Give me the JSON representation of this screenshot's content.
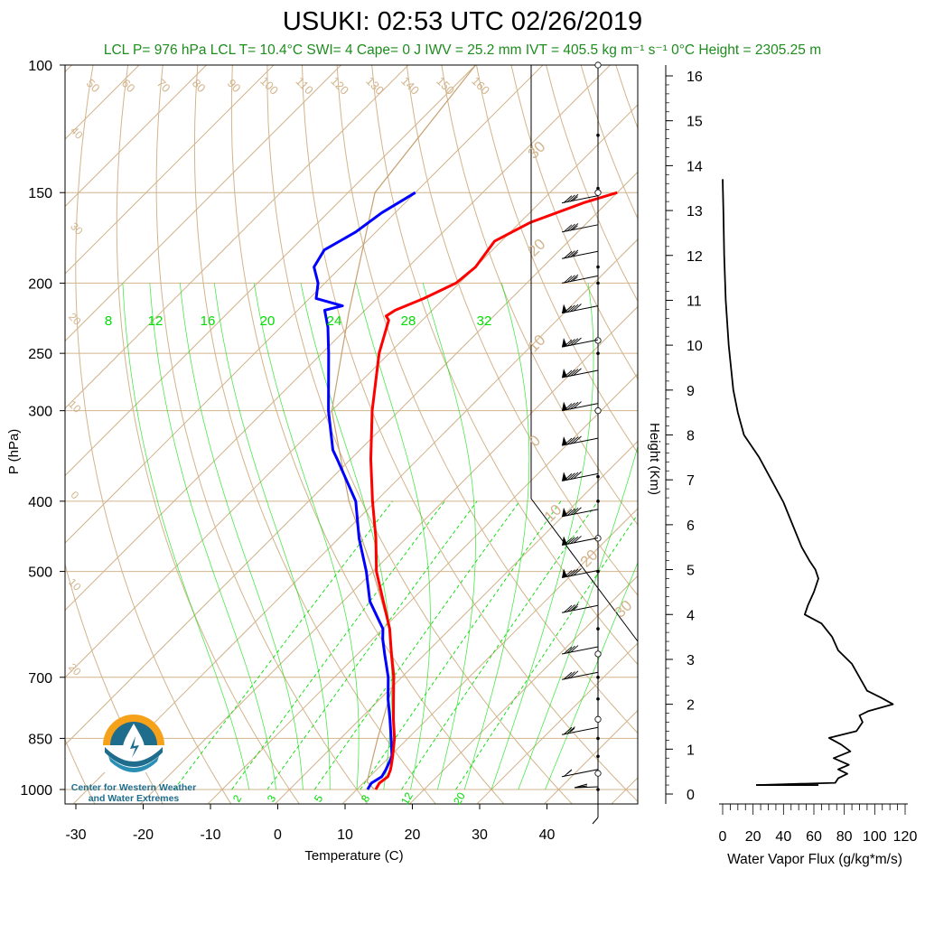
{
  "title": "USUKI: 02:53 UTC 02/26/2019",
  "subtitle": "LCL P= 976 hPa  LCL T= 10.4°C  SWI= 4  Cape= 0 J  IWV = 25.2 mm  IVT = 405.5 kg m⁻¹ s⁻¹  0°C Height = 2305.25 m",
  "logo": {
    "line1": "Center for Western Weather",
    "line2": "and Water Extremes",
    "icon": "water-drop-sun-logo"
  },
  "colors": {
    "temperature": "#ff0000",
    "dewpoint": "#0000ff",
    "isotherm": "#d2b48c",
    "mixing_ratio": "#00dd00",
    "moist_adiabat": "#00dd00",
    "subtitle": "#1e8c1e",
    "flux": "#000000"
  },
  "chart_data": [
    {
      "type": "line",
      "name": "skew-t",
      "xlabel": "Temperature (C)",
      "ylabel": "P (hPa)",
      "xlim": [
        -34,
        52
      ],
      "pressure_ticks": [
        100,
        150,
        200,
        250,
        300,
        400,
        500,
        700,
        850,
        1000
      ],
      "temperature_ticks": [
        -30,
        -20,
        -10,
        0,
        10,
        20,
        30,
        40
      ],
      "isotherm_labels_top": [
        "50",
        "60",
        "70",
        "80",
        "90",
        "100",
        "110",
        "120",
        "130",
        "140",
        "150",
        "160"
      ],
      "dry_adiabat_labels_left": [
        "40",
        "30",
        "20",
        "10",
        "0",
        "10",
        "20"
      ],
      "temp_labels_right": [
        "30",
        "20",
        "10",
        "0",
        "10",
        "20",
        "30"
      ],
      "mixing_ratio_labels_top": [
        "8",
        "12",
        "16",
        "20",
        "24",
        "28",
        "32"
      ],
      "mixing_ratio_labels_bottom": [
        "2",
        "3",
        "5",
        "8",
        "12",
        "20"
      ],
      "temperature_profile": {
        "p": [
          1000,
          980,
          960,
          940,
          925,
          900,
          850,
          800,
          750,
          700,
          650,
          600,
          550,
          500,
          450,
          400,
          350,
          300,
          250,
          225,
          222,
          218,
          210,
          200,
          190,
          175,
          165,
          155,
          150
        ],
        "t": [
          12.8,
          12.4,
          12.7,
          12.1,
          11.5,
          10.4,
          8.0,
          5.0,
          2.0,
          -1.2,
          -5.0,
          -9.0,
          -14.0,
          -19.5,
          -24.5,
          -30.5,
          -37.0,
          -44.0,
          -51.5,
          -55.0,
          -56.0,
          -55.5,
          -53.0,
          -50.5,
          -50.0,
          -51.0,
          -48.5,
          -43.5,
          -40.0
        ]
      },
      "dewpoint_profile": {
        "p": [
          1000,
          980,
          960,
          940,
          925,
          900,
          850,
          800,
          750,
          700,
          650,
          620,
          600,
          550,
          500,
          450,
          400,
          350,
          340,
          300,
          250,
          230,
          218,
          215,
          210,
          200,
          190,
          180,
          170,
          160,
          150
        ],
        "td": [
          11.6,
          11.2,
          11.8,
          11.4,
          11.0,
          10.3,
          7.5,
          4.5,
          1.2,
          -2.0,
          -6.0,
          -8.5,
          -10.0,
          -16.0,
          -21.0,
          -27.0,
          -33.0,
          -42.0,
          -44.0,
          -50.5,
          -59.0,
          -63.0,
          -66.0,
          -64.0,
          -69.0,
          -71.0,
          -74.0,
          -75.0,
          -73.0,
          -72.0,
          -70.0
        ]
      },
      "parcel_path": {
        "p": [
          1000,
          976,
          900,
          850,
          700,
          600,
          500,
          400,
          300,
          220,
          150,
          100
        ],
        "t": [
          12.6,
          10.4,
          7.5,
          5.5,
          -1.0,
          -9.0,
          -20.0,
          -34.0,
          -50.0,
          -62.0,
          -76.0,
          -80.0
        ]
      },
      "wind_barbs": [
        {
          "p": 1000,
          "speed_kt": 0
        },
        {
          "p": 960,
          "speed_kt": 15
        },
        {
          "p": 840,
          "speed_kt": 25
        },
        {
          "p": 705,
          "speed_kt": 30
        },
        {
          "p": 650,
          "speed_kt": 30
        },
        {
          "p": 570,
          "speed_kt": 35
        },
        {
          "p": 510,
          "speed_kt": 40
        },
        {
          "p": 460,
          "speed_kt": 40
        },
        {
          "p": 420,
          "speed_kt": 40
        },
        {
          "p": 375,
          "speed_kt": 40
        },
        {
          "p": 335,
          "speed_kt": 40
        },
        {
          "p": 300,
          "speed_kt": 40
        },
        {
          "p": 270,
          "speed_kt": 40
        },
        {
          "p": 245,
          "speed_kt": 40
        },
        {
          "p": 220,
          "speed_kt": 40
        },
        {
          "p": 200,
          "speed_kt": 35
        },
        {
          "p": 185,
          "speed_kt": 35
        },
        {
          "p": 170,
          "speed_kt": 35
        },
        {
          "p": 155,
          "speed_kt": 35
        }
      ]
    },
    {
      "type": "line",
      "name": "water-vapor-flux",
      "xlabel": "Water Vapor Flux (g/kg*m/s)",
      "ylabel": "Height (Km)",
      "xlim": [
        0,
        120
      ],
      "ylim": [
        0,
        16
      ],
      "xticks": [
        0,
        20,
        40,
        60,
        80,
        100,
        120
      ],
      "yticks": [
        0,
        1,
        2,
        3,
        4,
        5,
        6,
        7,
        8,
        9,
        10,
        11,
        12,
        13,
        14,
        15,
        16
      ],
      "height_km": [
        0.2,
        0.25,
        0.35,
        0.45,
        0.55,
        0.65,
        0.8,
        0.95,
        1.1,
        1.25,
        1.4,
        1.6,
        1.75,
        1.85,
        2.0,
        2.15,
        2.3,
        2.6,
        2.9,
        3.2,
        3.5,
        3.8,
        4.0,
        4.2,
        4.5,
        4.8,
        5.0,
        5.2,
        5.5,
        6.0,
        6.5,
        7.0,
        7.5,
        8.0,
        8.5,
        9.0,
        10.0,
        11.0,
        12.0,
        13.0,
        13.7
      ],
      "flux": [
        22,
        74,
        76,
        82,
        76,
        83,
        73,
        84,
        78,
        70,
        88,
        92,
        90,
        96,
        112,
        104,
        95,
        90,
        85,
        76,
        72,
        65,
        54,
        56,
        60,
        63,
        61,
        57,
        52,
        46,
        40,
        32,
        24,
        14,
        10,
        7,
        4,
        2,
        1,
        0.5,
        0
      ]
    }
  ]
}
